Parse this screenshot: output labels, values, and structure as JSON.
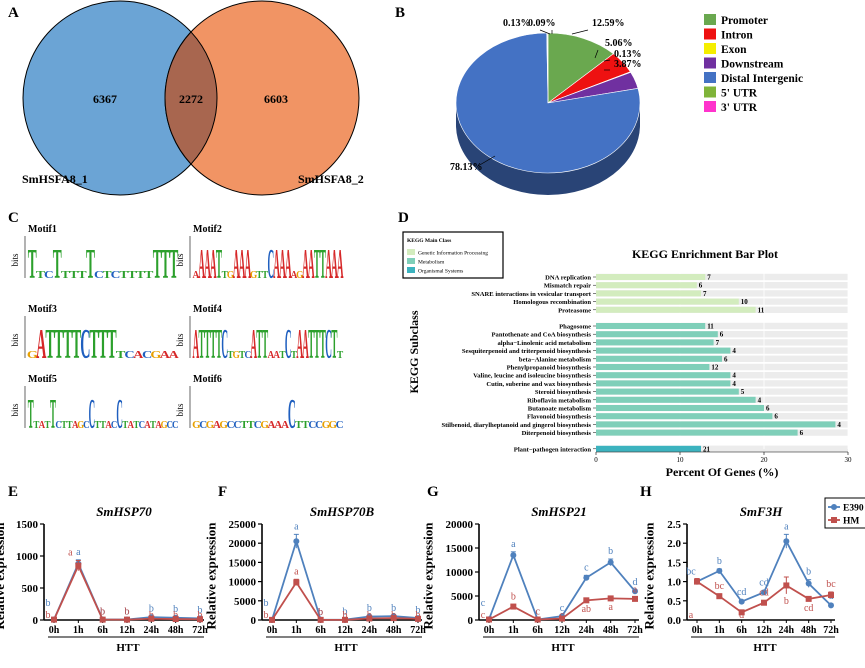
{
  "panels": {
    "A": "A",
    "B": "B",
    "C": "C",
    "D": "D",
    "E": "E",
    "F": "F",
    "G": "G",
    "H": "H"
  },
  "colors": {
    "blue": "#4f81bd",
    "red": "#c0504d",
    "venn_left": "#6ba4d5",
    "venn_right": "#f19464",
    "venn_overlap": "#a8664f",
    "kegg_genetic": "#d3ecbe",
    "kegg_metabolism": "#7fcfb9",
    "kegg_organismal": "#3cb3bf",
    "grid_band": "#ececec"
  },
  "venn": {
    "left_label": "SmHSFA8_1",
    "right_label": "SmHSFA8_2",
    "left_only": "6367",
    "overlap": "2272",
    "right_only": "6603"
  },
  "chart_data": [
    {
      "type": "pie",
      "title": "",
      "slices": [
        {
          "name": "Promoter",
          "value": 12.59,
          "label": "12.59%",
          "color": "#6aa84f"
        },
        {
          "name": "Intron",
          "value": 5.06,
          "label": "5.06%",
          "color": "#ee1111"
        },
        {
          "name": "Exon",
          "value": 0.13,
          "label": "0.13%",
          "color": "#f5ee00"
        },
        {
          "name": "Downstream",
          "value": 3.87,
          "label": "3.87%",
          "color": "#7030a0"
        },
        {
          "name": "Distal Intergenic",
          "value": 78.13,
          "label": "78.13%",
          "color": "#4472c4"
        },
        {
          "name": "5' UTR",
          "value": 0.13,
          "label": "0.13%",
          "color": "#7fb439"
        },
        {
          "name": "3' UTR",
          "value": 0.09,
          "label": "0.09%",
          "color": "#ff33cc"
        }
      ]
    },
    {
      "type": "bar",
      "orientation": "horizontal",
      "title": "KEGG Enrichment Bar Plot",
      "xlabel": "Percent Of Genes (%)",
      "ylabel": "KEGG Subclass",
      "xlim": [
        0,
        30
      ],
      "xticks": [
        "0",
        "10",
        "20",
        "30"
      ],
      "legend": {
        "title": "KEGG Main Class",
        "entries": [
          "Genetic Information Processing",
          "Metabolism",
          "Organismal Systems"
        ]
      },
      "groups": [
        {
          "name": "Genetic Information Processing",
          "items": [
            {
              "label": "DNA replication",
              "value": 13.0,
              "count": "7"
            },
            {
              "label": "Mismatch repair",
              "value": 12.0,
              "count": "6"
            },
            {
              "label": "SNARE interactions in vesicular transport",
              "value": 12.5,
              "count": "7"
            },
            {
              "label": "Homologous recombination",
              "value": 17.0,
              "count": "10"
            },
            {
              "label": "Proteasome",
              "value": 19.0,
              "count": "11"
            }
          ]
        },
        {
          "name": "Metabolism",
          "items": [
            {
              "label": "Phagosome",
              "value": 13.0,
              "count": "11"
            },
            {
              "label": "Pantothenate and CoA biosynthesis",
              "value": 14.5,
              "count": "6"
            },
            {
              "label": "alpha−Linolenic acid metabolism",
              "value": 14.0,
              "count": "7"
            },
            {
              "label": "Sesquiterpenoid and triterpenoid biosynthesis",
              "value": 16.0,
              "count": "4"
            },
            {
              "label": "beta−Alanine metabolism",
              "value": 15.0,
              "count": "6"
            },
            {
              "label": "Phenylpropanoid biosynthesis",
              "value": 13.5,
              "count": "12"
            },
            {
              "label": "Valine, leucine and isoleucine biosynthesis",
              "value": 16.0,
              "count": "4"
            },
            {
              "label": "Cutin, suberine and wax biosynthesis",
              "value": 16.0,
              "count": "4"
            },
            {
              "label": "Steroid biosynthesis",
              "value": 17.0,
              "count": "5"
            },
            {
              "label": "Riboflavin metabolism",
              "value": 19.0,
              "count": "4"
            },
            {
              "label": "Butanoate metabolism",
              "value": 20.0,
              "count": "6"
            },
            {
              "label": "Flavonoid biosynthesis",
              "value": 21.0,
              "count": "6"
            },
            {
              "label": "Stilbenoid, diarylheptanoid and gingerol biosynthesis",
              "value": 28.5,
              "count": "4"
            },
            {
              "label": "Diterpenoid biosynthesis",
              "value": 24.0,
              "count": "6"
            }
          ]
        },
        {
          "name": "Organismal Systems",
          "items": [
            {
              "label": "Plant−pathogen interaction",
              "value": 12.5,
              "count": "21"
            }
          ]
        }
      ]
    },
    {
      "type": "line",
      "title": "SmHSP70",
      "xlabel": "HTT",
      "ylabel": "Relative expression",
      "x": [
        "0h",
        "1h",
        "6h",
        "12h",
        "24h",
        "48h",
        "72h"
      ],
      "ylim": [
        0,
        1500
      ],
      "yticks": [
        "0",
        "500",
        "1000",
        "1500"
      ],
      "series": [
        {
          "name": "E390",
          "values": [
            8,
            880,
            8,
            8,
            45,
            35,
            25
          ],
          "errors": [
            0,
            60,
            0,
            0,
            10,
            8,
            6
          ],
          "letters": [
            "b",
            "a",
            "b",
            "b",
            "b",
            "b",
            "b"
          ]
        },
        {
          "name": "HM",
          "values": [
            6,
            850,
            6,
            6,
            20,
            15,
            12
          ],
          "errors": [
            0,
            80,
            0,
            0,
            5,
            4,
            3
          ],
          "letters": [
            "b",
            "a",
            "b",
            "b",
            "b",
            "b",
            "b"
          ]
        }
      ]
    },
    {
      "type": "line",
      "title": "SmHSP70B",
      "xlabel": "HTT",
      "ylabel": "Relative expression",
      "x": [
        "0h",
        "1h",
        "6h",
        "12h",
        "24h",
        "48h",
        "72h"
      ],
      "ylim": [
        0,
        25000
      ],
      "yticks": [
        "0",
        "5000",
        "10000",
        "15000",
        "20000",
        "25000"
      ],
      "series": [
        {
          "name": "E390",
          "values": [
            40,
            20500,
            60,
            80,
            900,
            1000,
            500
          ],
          "errors": [
            0,
            1800,
            0,
            0,
            100,
            100,
            60
          ],
          "letters": [
            "b",
            "a",
            "b",
            "b",
            "b",
            "b",
            "b"
          ]
        },
        {
          "name": "HM",
          "values": [
            30,
            9800,
            40,
            40,
            400,
            500,
            300
          ],
          "errors": [
            0,
            800,
            0,
            0,
            60,
            60,
            40
          ],
          "letters": [
            "b",
            "a",
            "b",
            "b",
            "b",
            "b",
            "b"
          ]
        }
      ]
    },
    {
      "type": "line",
      "title": "SmHSP21",
      "xlabel": "HTT",
      "ylabel": "Relative expression",
      "x": [
        "0h",
        "1h",
        "6h",
        "12h",
        "24h",
        "48h",
        "72h"
      ],
      "ylim": [
        0,
        20000
      ],
      "yticks": [
        "0",
        "5000",
        "10000",
        "15000",
        "20000"
      ],
      "series": [
        {
          "name": "E390",
          "values": [
            150,
            13500,
            100,
            800,
            8800,
            12000,
            6000
          ],
          "errors": [
            0,
            700,
            0,
            0,
            500,
            700,
            300
          ],
          "letters": [
            "c",
            "a",
            "c",
            "c",
            "c",
            "b",
            "d"
          ]
        },
        {
          "name": "HM",
          "values": [
            100,
            2800,
            100,
            300,
            4100,
            4500,
            4400
          ],
          "errors": [
            0,
            400,
            0,
            0,
            300,
            300,
            300
          ],
          "letters": [
            "c",
            "b",
            "c",
            "c",
            "ab",
            "a",
            "a"
          ]
        }
      ]
    },
    {
      "type": "line",
      "title": "SmF3H",
      "xlabel": "HTT",
      "ylabel": "Relative expression",
      "x": [
        "0h",
        "1h",
        "6h",
        "12h",
        "24h",
        "48h",
        "72h"
      ],
      "ylim": [
        0,
        2.5
      ],
      "yticks": [
        "0.0",
        "0.5",
        "1.0",
        "1.5",
        "2.0",
        "2.5"
      ],
      "legend": [
        "E390",
        "HM"
      ],
      "series": [
        {
          "name": "E390",
          "values": [
            1.0,
            1.28,
            0.48,
            0.72,
            2.05,
            0.95,
            0.38
          ],
          "errors": [
            0.05,
            0.05,
            0.04,
            0.05,
            0.18,
            0.1,
            0.04
          ],
          "letters": [
            "bc",
            "b",
            "cd",
            "cd",
            "a",
            "b",
            "d"
          ]
        },
        {
          "name": "HM",
          "values": [
            1.0,
            0.62,
            0.2,
            0.45,
            0.9,
            0.55,
            0.65
          ],
          "errors": [
            0.08,
            0.06,
            0.03,
            0.06,
            0.22,
            0.06,
            0.08
          ],
          "letters": [
            "a",
            "bc",
            "d",
            "cd",
            "b",
            "cd",
            "bc"
          ]
        }
      ]
    }
  ],
  "motifs": [
    {
      "name": "Motif1",
      "ylabel": "bits",
      "seq": "TTCTTTTTCTCTTTTTTT"
    },
    {
      "name": "Motif2",
      "ylabel": "bits",
      "seq": "AAAATTGAAAGTTCAAAAGAATTAAA"
    },
    {
      "name": "Motif3",
      "ylabel": "bits",
      "seq": "GATTTTCTTTTCACGAA"
    },
    {
      "name": "Motif4",
      "ylabel": "bits",
      "seq": "ATTTTCTGTCATTAATCTAATTTCTT"
    },
    {
      "name": "Motif5",
      "ylabel": "bits",
      "seq": "TTATTCTTAGCCTTACCTATCATAGCC"
    },
    {
      "name": "Motif6",
      "ylabel": "bits",
      "seq": "GCGAGCCTTCGAAACTTCCGGC"
    }
  ]
}
